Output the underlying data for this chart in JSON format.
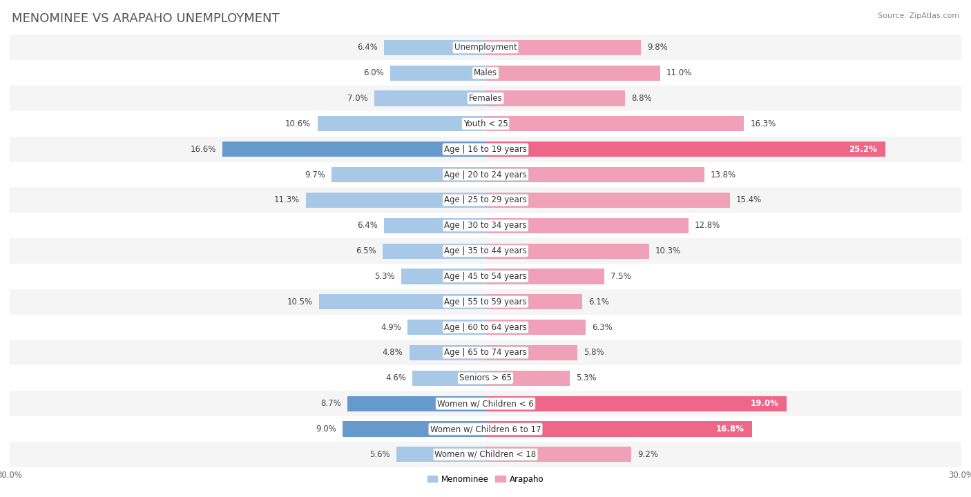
{
  "title": "MENOMINEE VS ARAPAHO UNEMPLOYMENT",
  "source": "Source: ZipAtlas.com",
  "categories": [
    "Unemployment",
    "Males",
    "Females",
    "Youth < 25",
    "Age | 16 to 19 years",
    "Age | 20 to 24 years",
    "Age | 25 to 29 years",
    "Age | 30 to 34 years",
    "Age | 35 to 44 years",
    "Age | 45 to 54 years",
    "Age | 55 to 59 years",
    "Age | 60 to 64 years",
    "Age | 65 to 74 years",
    "Seniors > 65",
    "Women w/ Children < 6",
    "Women w/ Children 6 to 17",
    "Women w/ Children < 18"
  ],
  "menominee": [
    6.4,
    6.0,
    7.0,
    10.6,
    16.6,
    9.7,
    11.3,
    6.4,
    6.5,
    5.3,
    10.5,
    4.9,
    4.8,
    4.6,
    8.7,
    9.0,
    5.6
  ],
  "arapaho": [
    9.8,
    11.0,
    8.8,
    16.3,
    25.2,
    13.8,
    15.4,
    12.8,
    10.3,
    7.5,
    6.1,
    6.3,
    5.8,
    5.3,
    19.0,
    16.8,
    9.2
  ],
  "menominee_color": "#a8c8e8",
  "arapaho_color": "#f0a0b8",
  "arapaho_highlight_color": "#ee6688",
  "menominee_highlight_color": "#6699cc",
  "highlight_rows": [
    4,
    14,
    15
  ],
  "bg_row_even": "#f5f5f5",
  "bg_row_odd": "#ffffff",
  "axis_limit": 30.0,
  "legend_menominee": "Menominee",
  "legend_arapaho": "Arapaho",
  "bar_height": 0.6,
  "title_fontsize": 13,
  "label_fontsize": 8.5,
  "tick_fontsize": 8.5,
  "category_fontsize": 8.5
}
